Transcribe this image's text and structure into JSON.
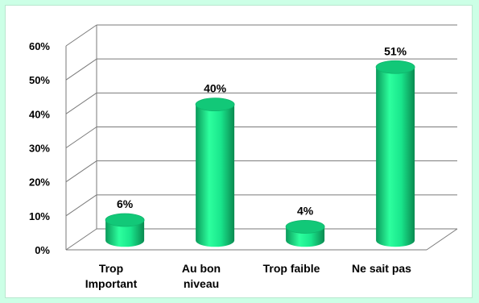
{
  "chart_data": {
    "type": "bar",
    "style": "3d-cylinder",
    "categories": [
      [
        "Trop",
        "Important"
      ],
      [
        "Au bon",
        "niveau"
      ],
      [
        "Trop faible"
      ],
      [
        "Ne sait pas"
      ]
    ],
    "values": [
      6,
      40,
      4,
      51
    ],
    "data_labels": [
      "6%",
      "40%",
      "4%",
      "51%"
    ],
    "ylim": [
      0,
      60
    ],
    "yticks": [
      "0%",
      "10%",
      "20%",
      "30%",
      "40%",
      "50%",
      "60%"
    ],
    "grid": true,
    "legend": "none",
    "colors": {
      "bar": "#19e68c",
      "bar_dark": "#0a9a5a",
      "bar_top": "#12c878",
      "gridline": "#7a7a7a",
      "background": "#ccffe6"
    }
  }
}
